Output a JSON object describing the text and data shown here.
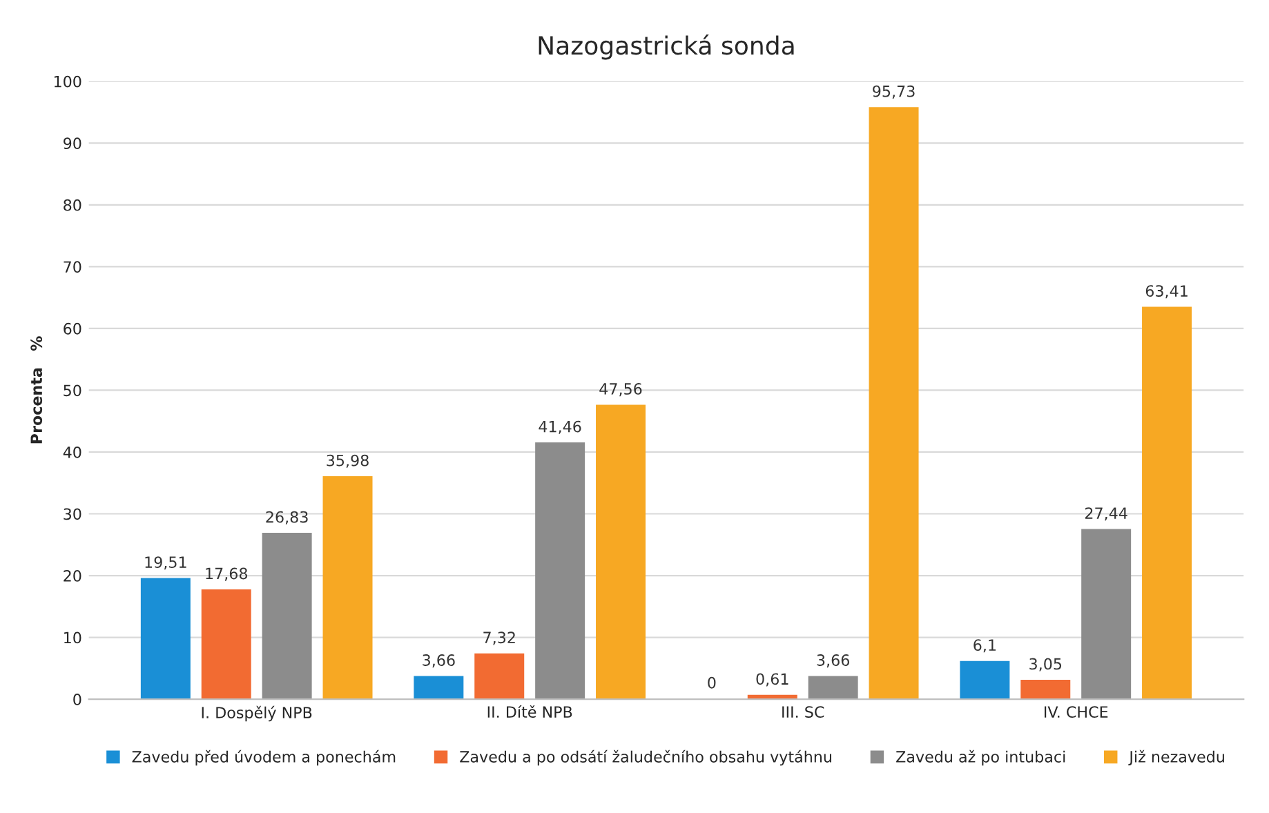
{
  "chart_data": {
    "type": "bar",
    "title": "Nazogastrická sonda",
    "ylabel": "Procenta   %",
    "categories": [
      "I. Dospělý NPB",
      "II. Dítě NPB",
      "III. SC",
      "IV. CHCE"
    ],
    "series": [
      {
        "name": "Zavedu před úvodem a ponechám",
        "color": "#1a8fd6",
        "values": [
          19.51,
          3.66,
          0,
          6.1
        ],
        "value_labels": [
          "19,51",
          "3,66",
          "0",
          "6,1"
        ]
      },
      {
        "name": "Zavedu a po odsátí žaludečního obsahu vytáhnu",
        "color": "#f26b32",
        "values": [
          17.68,
          7.32,
          0.61,
          3.05
        ],
        "value_labels": [
          "17,68",
          "7,32",
          "0,61",
          "3,05"
        ]
      },
      {
        "name": "Zavedu až po intubaci",
        "color": "#8c8c8c",
        "values": [
          26.83,
          41.46,
          3.66,
          27.44
        ],
        "value_labels": [
          "26,83",
          "41,46",
          "3,66",
          "27,44"
        ]
      },
      {
        "name": "Již nezavedu",
        "color": "#f7a823",
        "values": [
          35.98,
          47.56,
          95.73,
          63.41
        ],
        "value_labels": [
          "35,98",
          "47,56",
          "95,73",
          "63,41"
        ]
      }
    ],
    "ylim": [
      0,
      100
    ],
    "yticks": [
      0,
      10,
      20,
      30,
      40,
      50,
      60,
      70,
      80,
      90,
      100
    ],
    "grid": "y",
    "legend": "bottom"
  }
}
